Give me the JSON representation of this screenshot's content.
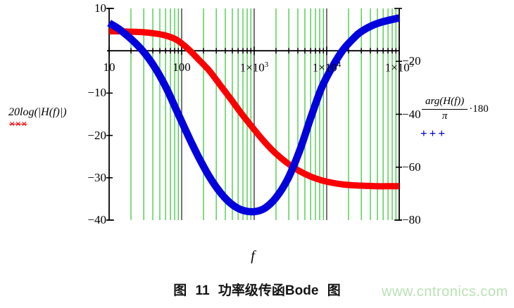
{
  "caption": {
    "text": "图 11 功率级传函Bode 图"
  },
  "watermark": {
    "text": "www.cntronics.com",
    "color": "#b9e2b4"
  },
  "chart_data": {
    "type": "line",
    "title": "",
    "x_axis": {
      "label": "f",
      "scale": "log",
      "min": 10,
      "max": 100000,
      "tick_values": [
        10,
        100,
        1000,
        10000,
        100000
      ],
      "ticks": [
        {
          "base": "10",
          "sup": ""
        },
        {
          "base": "100",
          "sup": ""
        },
        {
          "base": "1×10",
          "sup": "3"
        },
        {
          "base": "1×10",
          "sup": "4"
        },
        {
          "base": "1×10",
          "sup": "5"
        }
      ]
    },
    "y_left_axis": {
      "label": "20log(|H(f)|)",
      "min": -40,
      "max": 10,
      "ticks": [
        {
          "label": "10",
          "value": 10
        },
        {
          "label": "−10",
          "value": -10
        },
        {
          "label": "−20",
          "value": -20
        },
        {
          "label": "−30",
          "value": -30
        },
        {
          "label": "−40",
          "value": -40
        }
      ],
      "legend": "×××",
      "series_color": "#fa0000"
    },
    "y_right_axis": {
      "label_numerator": "arg(H(f))",
      "label_denominator": "π",
      "label_multiplier": "·180",
      "min": -80,
      "max": 0,
      "ticks": [
        {
          "label": "−20",
          "value": -20
        },
        {
          "label": "−40",
          "value": -40
        },
        {
          "label": "−60",
          "value": -60
        },
        {
          "label": "−80",
          "value": -80
        }
      ],
      "legend": "+++",
      "series_color": "#0000dd"
    },
    "grid": {
      "minor_color": "#2fc42f",
      "major_color": "#3c3c3c",
      "axis_color": "#000000",
      "minor_steps": [
        2,
        3,
        4,
        5,
        6,
        7,
        8,
        9
      ]
    },
    "series": [
      {
        "name": "magnitude_20log_H_dB",
        "axis": "left",
        "color": "#fa0000",
        "marker": "x",
        "points": [
          [
            10,
            4.6
          ],
          [
            14,
            4.6
          ],
          [
            20,
            4.5
          ],
          [
            29,
            4.4
          ],
          [
            42,
            4.1
          ],
          [
            60,
            3.6
          ],
          [
            85,
            2.6
          ],
          [
            120,
            0.6
          ],
          [
            170,
            -2.0
          ],
          [
            240,
            -4.7
          ],
          [
            340,
            -8.1
          ],
          [
            480,
            -11.5
          ],
          [
            680,
            -15.0
          ],
          [
            1000,
            -18.6
          ],
          [
            1400,
            -21.6
          ],
          [
            2000,
            -24.3
          ],
          [
            2900,
            -26.6
          ],
          [
            4200,
            -28.4
          ],
          [
            6000,
            -29.7
          ],
          [
            8500,
            -30.6
          ],
          [
            12000,
            -31.2
          ],
          [
            17000,
            -31.6
          ],
          [
            24000,
            -31.8
          ],
          [
            34000,
            -31.9
          ],
          [
            48000,
            -32.0
          ],
          [
            68000,
            -32.0
          ],
          [
            100000,
            -32.0
          ]
        ]
      },
      {
        "name": "phase_arg_H_deg",
        "axis": "right",
        "color": "#0000dd",
        "marker": "+",
        "points": [
          [
            10,
            -5.5
          ],
          [
            14,
            -8.0
          ],
          [
            20,
            -11.5
          ],
          [
            29,
            -16.0
          ],
          [
            42,
            -22.0
          ],
          [
            60,
            -29.5
          ],
          [
            85,
            -38.5
          ],
          [
            120,
            -47.5
          ],
          [
            170,
            -56.0
          ],
          [
            240,
            -63.5
          ],
          [
            340,
            -69.5
          ],
          [
            480,
            -73.8
          ],
          [
            680,
            -76.2
          ],
          [
            1000,
            -76.8
          ],
          [
            1400,
            -75.5
          ],
          [
            2000,
            -71.5
          ],
          [
            2900,
            -64.5
          ],
          [
            4200,
            -54.0
          ],
          [
            6000,
            -41.5
          ],
          [
            8500,
            -30.0
          ],
          [
            12000,
            -22.0
          ],
          [
            17000,
            -15.5
          ],
          [
            24000,
            -11.0
          ],
          [
            29000,
            -9.0
          ],
          [
            42000,
            -6.5
          ],
          [
            60000,
            -5.0
          ],
          [
            100000,
            -3.6
          ]
        ]
      }
    ]
  }
}
